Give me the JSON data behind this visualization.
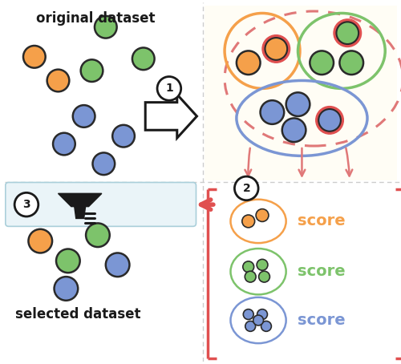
{
  "fig_width": 5.0,
  "fig_height": 4.54,
  "dpi": 100,
  "orange": "#F5A04A",
  "green": "#7DC36B",
  "blue": "#7B96D4",
  "red": "#E05050",
  "pink_dash": "#E07878",
  "dark": "#1A1A1A",
  "bg_color": "#FFFFFF",
  "light_blue_bg": "#EAF4F8",
  "tr_bg": "#FFFDF5",
  "divider_color": "#CCCCCC",
  "title_original": "original dataset",
  "title_selected": "selected dataset",
  "score_orange": "score",
  "score_green": "score",
  "score_blue": "score"
}
